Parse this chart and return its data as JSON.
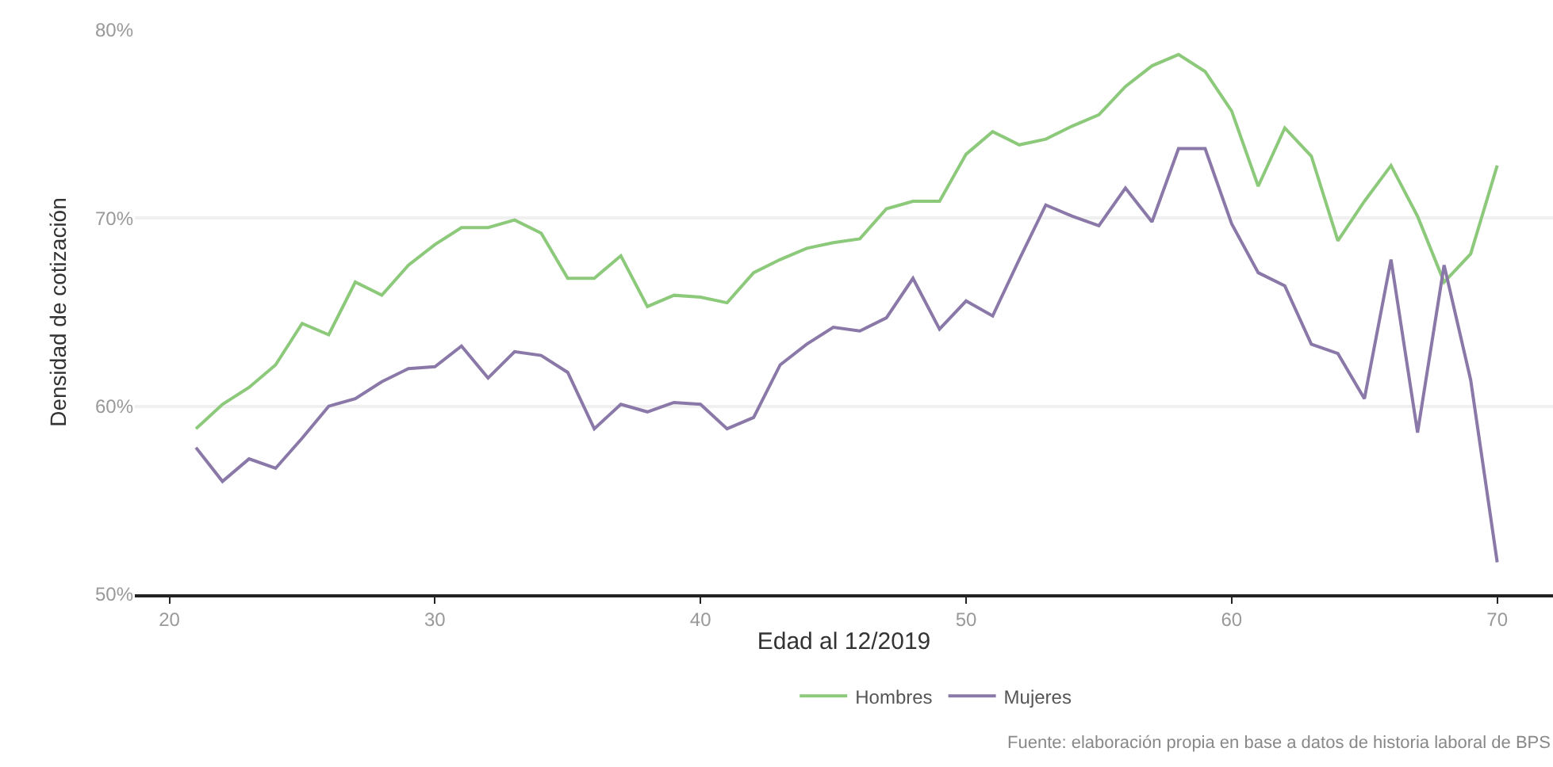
{
  "chart_data": {
    "type": "line",
    "xlabel": "Edad al 12/2019",
    "ylabel": "Densidad de cotización",
    "x": [
      21,
      22,
      23,
      24,
      25,
      26,
      27,
      28,
      29,
      30,
      31,
      32,
      33,
      34,
      35,
      36,
      37,
      38,
      39,
      40,
      41,
      42,
      43,
      44,
      45,
      46,
      47,
      48,
      49,
      50,
      51,
      52,
      53,
      54,
      55,
      56,
      57,
      58,
      59,
      60,
      61,
      62,
      63,
      64,
      65,
      66,
      67,
      68,
      69,
      70
    ],
    "series": [
      {
        "name": "Hombres",
        "color": "#8cc97a",
        "values": [
          58.8,
          60.1,
          61.0,
          62.2,
          64.4,
          63.8,
          66.6,
          65.9,
          67.5,
          68.6,
          69.5,
          69.5,
          69.9,
          69.2,
          66.8,
          66.8,
          68.0,
          65.3,
          65.9,
          65.8,
          65.5,
          67.1,
          67.8,
          68.4,
          68.7,
          68.9,
          70.5,
          70.9,
          70.9,
          73.4,
          74.6,
          73.9,
          74.2,
          74.9,
          75.5,
          77.0,
          78.1,
          78.7,
          77.8,
          75.7,
          71.7,
          74.8,
          73.3,
          68.8,
          70.9,
          72.8,
          70.1,
          66.6,
          68.1,
          72.8
        ]
      },
      {
        "name": "Mujeres",
        "color": "#8a78a8",
        "values": [
          57.8,
          56.0,
          57.2,
          56.7,
          58.3,
          60.0,
          60.4,
          61.3,
          62.0,
          62.1,
          63.2,
          61.5,
          62.9,
          62.7,
          61.8,
          58.8,
          60.1,
          59.7,
          60.2,
          60.1,
          58.8,
          59.4,
          62.2,
          63.3,
          64.2,
          64.0,
          64.7,
          66.8,
          64.1,
          65.6,
          64.8,
          67.8,
          70.7,
          70.1,
          69.6,
          71.6,
          69.8,
          73.7,
          73.7,
          69.7,
          67.1,
          66.4,
          63.3,
          62.8,
          60.4,
          67.8,
          58.6,
          67.5,
          61.4,
          51.7
        ]
      }
    ],
    "xlim": [
      18.7,
      72.1
    ],
    "xticks": [
      20,
      30,
      40,
      50,
      60,
      70
    ],
    "ylim": [
      50,
      80
    ],
    "yticks": [
      {
        "value": 50,
        "label": "50%"
      },
      {
        "value": 60,
        "label": "60%"
      },
      {
        "value": 70,
        "label": "70%"
      },
      {
        "value": 80,
        "label": "80%"
      }
    ],
    "grid": "y",
    "legend": "bottom",
    "marker": "none",
    "line_style": "solid",
    "annotations": [
      "Fuente: elaboración propia en base a datos de historia laboral de BPS"
    ]
  }
}
